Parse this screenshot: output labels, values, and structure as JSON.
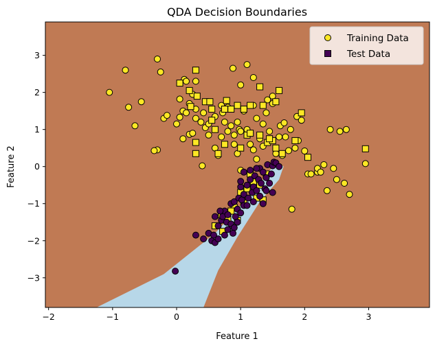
{
  "chart_data": {
    "type": "scatter",
    "title": "QDA Decision Boundaries",
    "xlabel": "Feature 1",
    "ylabel": "Feature 2",
    "xlim": [
      -2.05,
      3.95
    ],
    "ylim": [
      -3.8,
      3.9
    ],
    "xticks": [
      -2,
      -1,
      0,
      1,
      2,
      3
    ],
    "yticks": [
      -3,
      -2,
      -1,
      0,
      1,
      2,
      3
    ],
    "grid": false,
    "legend": {
      "position": "top-right",
      "entries": [
        "Training Data",
        "Test Data"
      ]
    },
    "colors": {
      "class_a_region": "#c07a54",
      "class_b_region": "#b7d7e8",
      "class_a_points": "#fde725",
      "class_b_points": "#440154",
      "marker_edge": "#000000"
    },
    "decision_boundary": {
      "class_b_region_vertices": [
        [
          -1.25,
          -3.8
        ],
        [
          -0.2,
          -2.9
        ],
        [
          0.6,
          -1.8
        ],
        [
          1.0,
          -1.05
        ],
        [
          1.35,
          -0.35
        ],
        [
          1.5,
          0.0
        ],
        [
          1.62,
          0.07
        ],
        [
          1.67,
          0.0
        ],
        [
          1.6,
          -0.35
        ],
        [
          1.3,
          -0.95
        ],
        [
          0.95,
          -1.9
        ],
        [
          0.65,
          -2.8
        ],
        [
          0.42,
          -3.8
        ]
      ]
    },
    "series": [
      {
        "name": "Training Data",
        "marker": "circle",
        "points": [
          [
            -1.05,
            2.0
          ],
          [
            -0.8,
            2.6
          ],
          [
            -0.75,
            1.6
          ],
          [
            -0.65,
            1.1
          ],
          [
            -0.55,
            1.75
          ],
          [
            -0.3,
            2.9
          ],
          [
            -0.25,
            2.55
          ],
          [
            -0.3,
            0.45
          ],
          [
            -0.35,
            0.43
          ],
          [
            -0.2,
            1.3
          ],
          [
            -0.15,
            1.38
          ],
          [
            0.05,
            1.82
          ],
          [
            0.05,
            1.33
          ],
          [
            0.1,
            1.5
          ],
          [
            0.12,
            2.35
          ],
          [
            0.15,
            2.3
          ],
          [
            0.15,
            1.45
          ],
          [
            0.2,
            1.7
          ],
          [
            0.1,
            0.75
          ],
          [
            0.2,
            0.87
          ],
          [
            0.25,
            0.9
          ],
          [
            0.25,
            1.95
          ],
          [
            0.3,
            2.3
          ],
          [
            0.3,
            1.55
          ],
          [
            0.3,
            1.3
          ],
          [
            0.38,
            1.2
          ],
          [
            0.42,
            1.45
          ],
          [
            0.4,
            0.02
          ],
          [
            0.45,
            1.05
          ],
          [
            0.5,
            1.15
          ],
          [
            0.5,
            0.85
          ],
          [
            0.55,
            1.25
          ],
          [
            0.6,
            0.5
          ],
          [
            0.7,
            1.65
          ],
          [
            0.7,
            0.8
          ],
          [
            0.72,
            1.45
          ],
          [
            0.75,
            1.2
          ],
          [
            0.8,
            1.6
          ],
          [
            0.8,
            0.95
          ],
          [
            0.85,
            1.1
          ],
          [
            0.9,
            0.6
          ],
          [
            0.9,
            0.85
          ],
          [
            0.95,
            1.2
          ],
          [
            0.98,
            1.0
          ],
          [
            1.0,
            0.95
          ],
          [
            1.05,
            1.5
          ],
          [
            1.1,
            2.75
          ],
          [
            1.1,
            1.0
          ],
          [
            1.15,
            0.6
          ],
          [
            0.88,
            2.65
          ],
          [
            1.0,
            2.2
          ],
          [
            1.2,
            1.65
          ],
          [
            1.2,
            2.4
          ],
          [
            1.25,
            1.3
          ],
          [
            1.3,
            0.75
          ],
          [
            1.35,
            1.15
          ],
          [
            1.35,
            0.55
          ],
          [
            1.42,
            1.8
          ],
          [
            1.45,
            0.95
          ],
          [
            1.5,
            1.9
          ],
          [
            1.5,
            1.7
          ],
          [
            1.55,
            0.35
          ],
          [
            1.62,
            1.1
          ],
          [
            1.65,
            0.3
          ],
          [
            1.68,
            1.18
          ],
          [
            1.7,
            0.8
          ],
          [
            1.75,
            0.43
          ],
          [
            1.78,
            1.0
          ],
          [
            1.85,
            0.5
          ],
          [
            1.88,
            1.35
          ],
          [
            1.9,
            0.7
          ],
          [
            1.95,
            1.25
          ],
          [
            2.0,
            0.42
          ],
          [
            2.05,
            -0.2
          ],
          [
            2.1,
            -0.2
          ],
          [
            2.2,
            -0.15
          ],
          [
            2.2,
            -0.05
          ],
          [
            2.25,
            -0.15
          ],
          [
            2.3,
            0.05
          ],
          [
            2.35,
            -0.65
          ],
          [
            2.45,
            -0.05
          ],
          [
            2.5,
            -0.35
          ],
          [
            2.4,
            1.0
          ],
          [
            2.55,
            0.95
          ],
          [
            2.65,
            1.0
          ],
          [
            2.62,
            -0.45
          ],
          [
            2.7,
            -0.75
          ],
          [
            2.95,
            0.08
          ],
          [
            1.8,
            -1.15
          ],
          [
            0.0,
            1.15
          ],
          [
            1.2,
            0.45
          ],
          [
            0.6,
            1.35
          ],
          [
            1.4,
            1.45
          ],
          [
            0.95,
            0.35
          ],
          [
            0.65,
            0.3
          ],
          [
            1.0,
            -0.1
          ],
          [
            1.6,
            0.8
          ],
          [
            1.25,
            0.2
          ]
        ]
      },
      {
        "name": "Test Data",
        "marker": "square",
        "points": [
          [
            0.05,
            2.25
          ],
          [
            0.3,
            2.6
          ],
          [
            0.2,
            2.05
          ],
          [
            0.32,
            1.9
          ],
          [
            0.22,
            1.62
          ],
          [
            0.45,
            1.75
          ],
          [
            0.52,
            1.75
          ],
          [
            0.55,
            1.25
          ],
          [
            0.6,
            1.0
          ],
          [
            0.65,
            0.35
          ],
          [
            0.3,
            0.35
          ],
          [
            0.3,
            0.65
          ],
          [
            0.75,
            1.55
          ],
          [
            0.78,
            1.78
          ],
          [
            0.85,
            1.55
          ],
          [
            0.95,
            1.65
          ],
          [
            1.05,
            1.55
          ],
          [
            1.15,
            1.65
          ],
          [
            1.3,
            2.15
          ],
          [
            1.35,
            1.65
          ],
          [
            1.55,
            1.75
          ],
          [
            1.6,
            2.05
          ],
          [
            1.85,
            0.7
          ],
          [
            1.42,
            0.65
          ],
          [
            1.5,
            0.7
          ],
          [
            0.75,
            0.6
          ],
          [
            1.1,
            0.85
          ],
          [
            1.65,
            0.35
          ],
          [
            2.05,
            0.25
          ],
          [
            2.95,
            0.48
          ],
          [
            1.95,
            1.45
          ],
          [
            1.45,
            0.75
          ],
          [
            1.0,
            0.5
          ],
          [
            0.55,
            1.55
          ],
          [
            1.15,
            0.9
          ],
          [
            1.55,
            0.5
          ],
          [
            1.3,
            0.85
          ],
          [
            0.7,
            -1.3
          ],
          [
            0.6,
            -1.6
          ],
          [
            0.8,
            -1.4
          ],
          [
            0.9,
            -1.1
          ],
          [
            1.0,
            -0.7
          ],
          [
            1.1,
            -0.6
          ],
          [
            1.2,
            -0.4
          ],
          [
            1.3,
            -0.5
          ],
          [
            1.4,
            -0.2
          ],
          [
            0.95,
            -1.45
          ],
          [
            0.72,
            -1.75
          ],
          [
            1.05,
            -0.95
          ],
          [
            1.25,
            -0.85
          ],
          [
            1.35,
            -0.9
          ],
          [
            1.15,
            -0.2
          ],
          [
            0.85,
            -1.2
          ]
        ]
      },
      {
        "name": "",
        "marker": "circle",
        "points": [
          [
            -0.02,
            -2.82
          ],
          [
            0.3,
            -1.85
          ],
          [
            0.42,
            -1.95
          ],
          [
            0.5,
            -1.8
          ],
          [
            0.55,
            -2.0
          ],
          [
            0.6,
            -2.05
          ],
          [
            0.65,
            -1.95
          ],
          [
            0.58,
            -1.85
          ],
          [
            0.65,
            -1.6
          ],
          [
            0.7,
            -1.45
          ],
          [
            0.72,
            -1.35
          ],
          [
            0.75,
            -1.2
          ],
          [
            0.78,
            -1.5
          ],
          [
            0.8,
            -1.7
          ],
          [
            0.8,
            -1.3
          ],
          [
            0.85,
            -1.55
          ],
          [
            0.85,
            -1.0
          ],
          [
            0.9,
            -0.95
          ],
          [
            0.92,
            -1.35
          ],
          [
            0.9,
            -1.65
          ],
          [
            0.95,
            -1.15
          ],
          [
            0.97,
            -0.85
          ],
          [
            1.0,
            -1.25
          ],
          [
            1.0,
            -0.55
          ],
          [
            1.02,
            -0.9
          ],
          [
            1.05,
            -0.75
          ],
          [
            1.05,
            -1.05
          ],
          [
            1.1,
            -0.5
          ],
          [
            1.12,
            -0.85
          ],
          [
            1.15,
            -0.35
          ],
          [
            1.18,
            -0.7
          ],
          [
            1.2,
            -0.55
          ],
          [
            1.22,
            -0.25
          ],
          [
            1.25,
            -0.65
          ],
          [
            1.28,
            -0.35
          ],
          [
            1.3,
            -0.05
          ],
          [
            1.32,
            -0.45
          ],
          [
            1.35,
            -0.15
          ],
          [
            1.38,
            -0.6
          ],
          [
            1.4,
            -0.3
          ],
          [
            1.42,
            0.05
          ],
          [
            1.45,
            -0.45
          ],
          [
            1.48,
            -0.2
          ],
          [
            1.5,
            0.02
          ],
          [
            1.52,
            0.12
          ],
          [
            1.55,
            0.1
          ],
          [
            1.6,
            0.0
          ],
          [
            1.1,
            -1.05
          ],
          [
            1.2,
            -0.95
          ],
          [
            1.3,
            -0.8
          ],
          [
            1.4,
            -0.65
          ],
          [
            1.5,
            -0.7
          ],
          [
            0.68,
            -1.2
          ],
          [
            0.88,
            -1.8
          ],
          [
            0.95,
            -1.5
          ],
          [
            1.0,
            -0.4
          ],
          [
            1.15,
            -0.1
          ],
          [
            1.35,
            -1.0
          ],
          [
            1.25,
            -0.05
          ],
          [
            0.75,
            -1.85
          ],
          [
            0.6,
            -1.35
          ],
          [
            1.05,
            -0.15
          ]
        ]
      }
    ]
  }
}
